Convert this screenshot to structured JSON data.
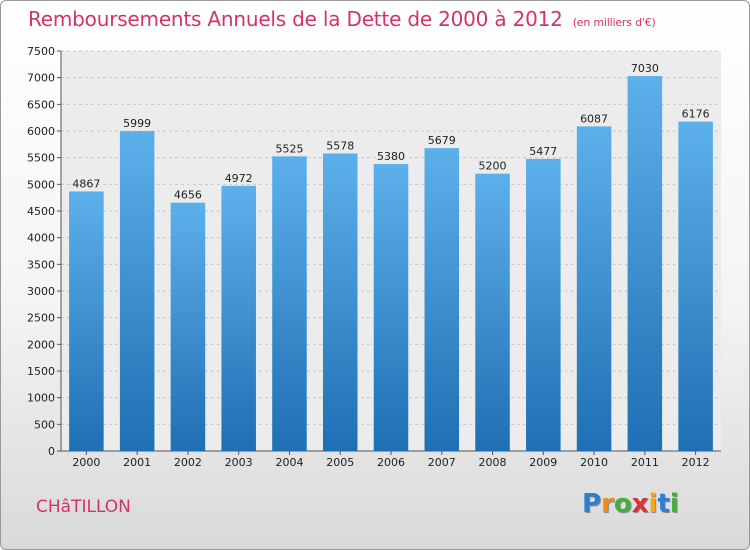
{
  "header": {
    "title": "Remboursements Annuels de la Dette de 2000 à 2012",
    "unit": "(en milliers d'€)"
  },
  "footer": {
    "commune": "CHâTILLON",
    "logo_letters": [
      {
        "ch": "P",
        "color": "#2f7fd1"
      },
      {
        "ch": "r",
        "color": "#f08a1c"
      },
      {
        "ch": "o",
        "color": "#44ad3c"
      },
      {
        "ch": "x",
        "color": "#d9303b"
      },
      {
        "ch": "i",
        "color": "#f2a81c"
      },
      {
        "ch": "t",
        "color": "#2f7fd1"
      },
      {
        "ch": "i",
        "color": "#44ad3c"
      }
    ]
  },
  "colors": {
    "bar_top": "#5cb0ea",
    "bar_bottom": "#1f6fb4",
    "accent": "#d3326a"
  },
  "chart_data": {
    "type": "bar",
    "title": "Remboursements Annuels de la Dette de 2000 à 2012",
    "ylabel": "(en milliers d'€)",
    "xlabel": "",
    "categories": [
      "2000",
      "2001",
      "2002",
      "2003",
      "2004",
      "2005",
      "2006",
      "2007",
      "2008",
      "2009",
      "2010",
      "2011",
      "2012"
    ],
    "values": [
      4867,
      5999,
      4656,
      4972,
      5525,
      5578,
      5380,
      5679,
      5200,
      5477,
      6087,
      7030,
      6176
    ],
    "ylim": [
      0,
      7500
    ],
    "yticks": [
      0,
      500,
      1000,
      1500,
      2000,
      2500,
      3000,
      3500,
      4000,
      4500,
      5000,
      5500,
      6000,
      6500,
      7000,
      7500
    ],
    "grid": true
  }
}
